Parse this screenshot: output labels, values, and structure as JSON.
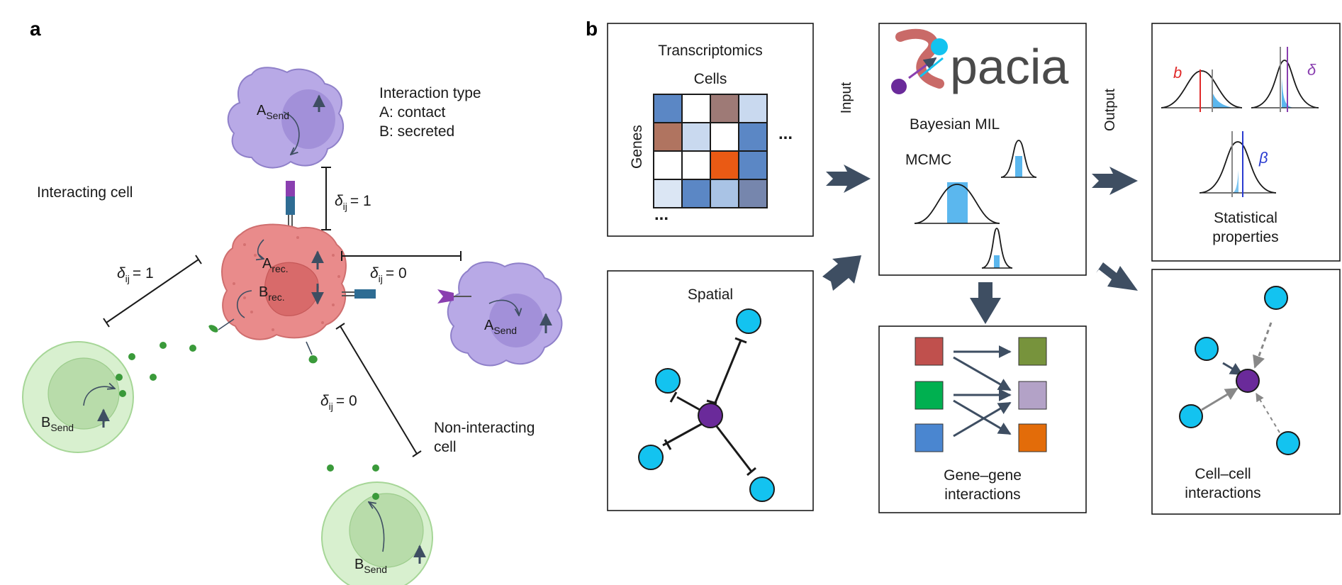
{
  "panel_a": {
    "label": "a",
    "interaction_type": {
      "heading": "Interaction type",
      "line_a": "A: contact",
      "line_b": "B: secreted"
    },
    "interacting_cell": "Interacting cell",
    "non_interacting_cell_line1": "Non-interacting",
    "non_interacting_cell_line2": "cell",
    "delta_symbol": "δ",
    "delta_sub": "ij",
    "delta_top": "= 1",
    "delta_left": "= 1",
    "delta_right": "= 0",
    "delta_bottom": "= 0",
    "a_send_base": "A",
    "send_sub": "Send",
    "b_send_base": "B",
    "a_rec_base": "A",
    "b_rec_base": "B",
    "rec_sub": "rec.",
    "colors": {
      "purple_cell": "#b8a9e6",
      "red_cell": "#e98b8b",
      "green_cell": "#cfeac4",
      "molecule": "#3a9a3a"
    }
  },
  "panel_b": {
    "label": "b",
    "transcriptomics": {
      "title": "Transcriptomics",
      "cells_label": "Cells",
      "genes_label": "Genes",
      "ellipsis_right": "...",
      "ellipsis_bottom": "...",
      "heatmap": [
        [
          "#5b87c5",
          "#ffffff",
          "#9e7a76",
          "#c9d9ef"
        ],
        [
          "#b07460",
          "#c9d9ef",
          "#ffffff",
          "#5b87c5"
        ],
        [
          "#ffffff",
          "#ffffff",
          "#ea5a14",
          "#5b87c5"
        ],
        [
          "#dbe6f4",
          "#5b87c5",
          "#a9c3e5",
          "#7686ad"
        ]
      ]
    },
    "spatial": {
      "title": "Spatial"
    },
    "input_label": "Input",
    "output_label": "Output",
    "spacia": {
      "logo_text": "pacia",
      "bayesian": "Bayesian MIL",
      "mcmc": "MCMC"
    },
    "stats": {
      "b_symbol": "b",
      "delta_symbol": "δ",
      "beta_symbol": "β",
      "caption_line1": "Statistical",
      "caption_line2": "properties",
      "b_color": "#e02a2a",
      "delta_color": "#8a3fb0",
      "beta_color": "#2a3bd0"
    },
    "gene_gene": {
      "caption_line1": "Gene–gene",
      "caption_line2": "interactions",
      "left_colors": [
        "#c0504d",
        "#00b050",
        "#4a86d0"
      ],
      "right_colors": [
        "#77933c",
        "#b3a2c7",
        "#e36c09"
      ]
    },
    "cell_cell": {
      "caption_line1": "Cell–cell",
      "caption_line2": "interactions"
    },
    "colors": {
      "node": "#13c3f0",
      "center_node": "#6a2a9a",
      "arrow": "#3e4e62",
      "dist_fill": "#5bb7ee"
    }
  }
}
